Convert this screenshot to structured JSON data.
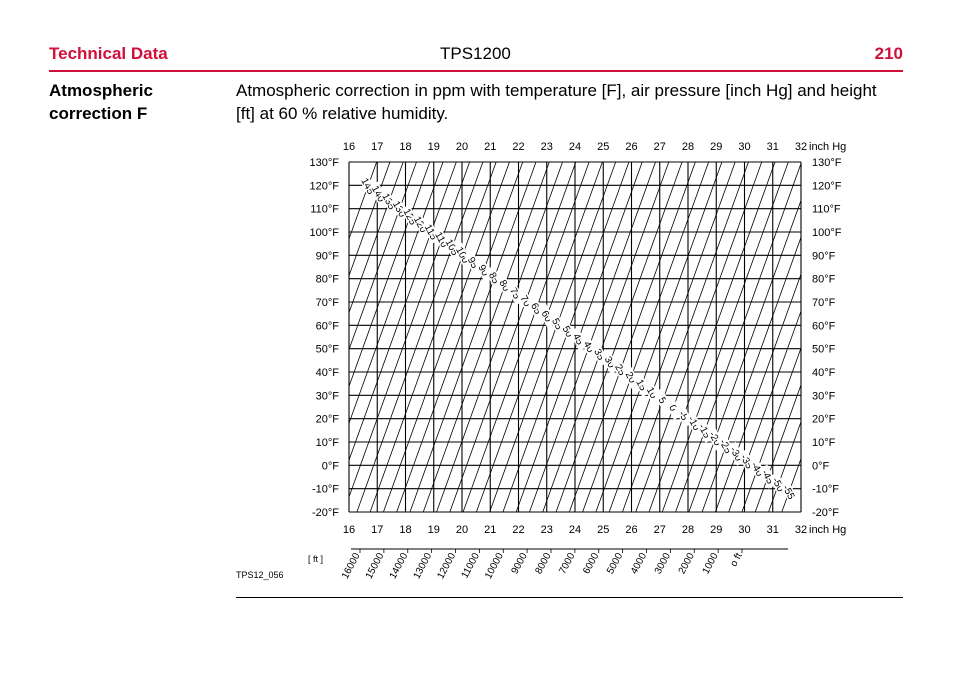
{
  "header": {
    "section": "Technical Data",
    "product": "TPS1200",
    "page_number": "210"
  },
  "side_heading": "Atmospheric correction F",
  "intro_text": "Atmospheric correction in ppm with temperature [F], air pressure [inch Hg] and height [ft] at 60 % relative humidity.",
  "figure_id": "TPS12_056",
  "chart_data": {
    "type": "nomogram",
    "x_unit": "inch Hg",
    "x_ticks": [
      "16",
      "17",
      "18",
      "19",
      "20",
      "21",
      "22",
      "23",
      "24",
      "25",
      "26",
      "27",
      "28",
      "29",
      "30",
      "31",
      "32"
    ],
    "y_ticks": [
      "130°F",
      "120°F",
      "110°F",
      "100°F",
      "90°F",
      "80°F",
      "70°F",
      "60°F",
      "50°F",
      "40°F",
      "30°F",
      "20°F",
      "10°F",
      "0°F",
      "-10°F",
      "-20°F"
    ],
    "ppm_labels": [
      "145",
      "140",
      "135",
      "130",
      "125",
      "120",
      "115",
      "110",
      "105",
      "100",
      "95",
      "90",
      "85",
      "80",
      "75",
      "70",
      "65",
      "60",
      "55",
      "50",
      "45",
      "40",
      "35",
      "30",
      "25",
      "20",
      "15",
      "10",
      "5",
      "0",
      "-5",
      "-10",
      "-15",
      "-20",
      "-25",
      "-30",
      "-35",
      "-40",
      "-45",
      "-50",
      "-55"
    ],
    "height_unit": "[ ft ]",
    "height_ticks": [
      "16000",
      "15000",
      "14000",
      "13000",
      "12000",
      "11000",
      "10000",
      "9000",
      "8000",
      "7000",
      "6000",
      "5000",
      "4000",
      "3000",
      "2000",
      "1000",
      "o ft"
    ]
  }
}
